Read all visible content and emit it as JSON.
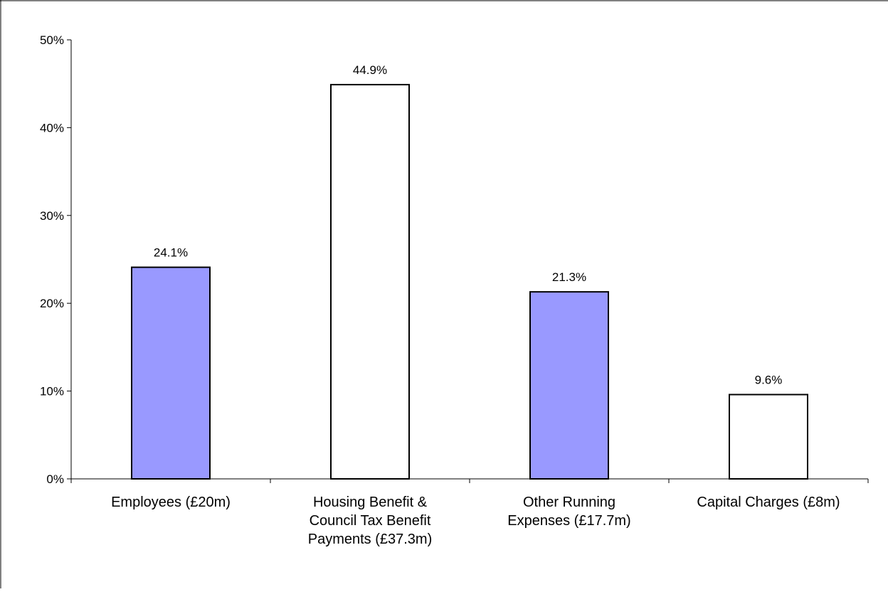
{
  "chart_data": {
    "type": "bar",
    "categories": [
      [
        "Employees (£20m)"
      ],
      [
        "Housing Benefit &",
        "Council Tax Benefit",
        "Payments (£37.3m)"
      ],
      [
        "Other Running",
        "Expenses (£17.7m)"
      ],
      [
        "Capital Charges (£8m)"
      ]
    ],
    "values": [
      24.1,
      44.9,
      21.3,
      9.6
    ],
    "value_labels": [
      "24.1%",
      "44.9%",
      "21.3%",
      "9.6%"
    ],
    "bar_colors": [
      "#9999ff",
      "#ffffff",
      "#9999ff",
      "#ffffff"
    ],
    "ylim": [
      0,
      50
    ],
    "yticks": [
      0,
      10,
      20,
      30,
      40,
      50
    ],
    "ytick_labels": [
      "0%",
      "10%",
      "20%",
      "30%",
      "40%",
      "50%"
    ],
    "title": "",
    "xlabel": "",
    "ylabel": "",
    "grid": false,
    "legend": "none"
  }
}
